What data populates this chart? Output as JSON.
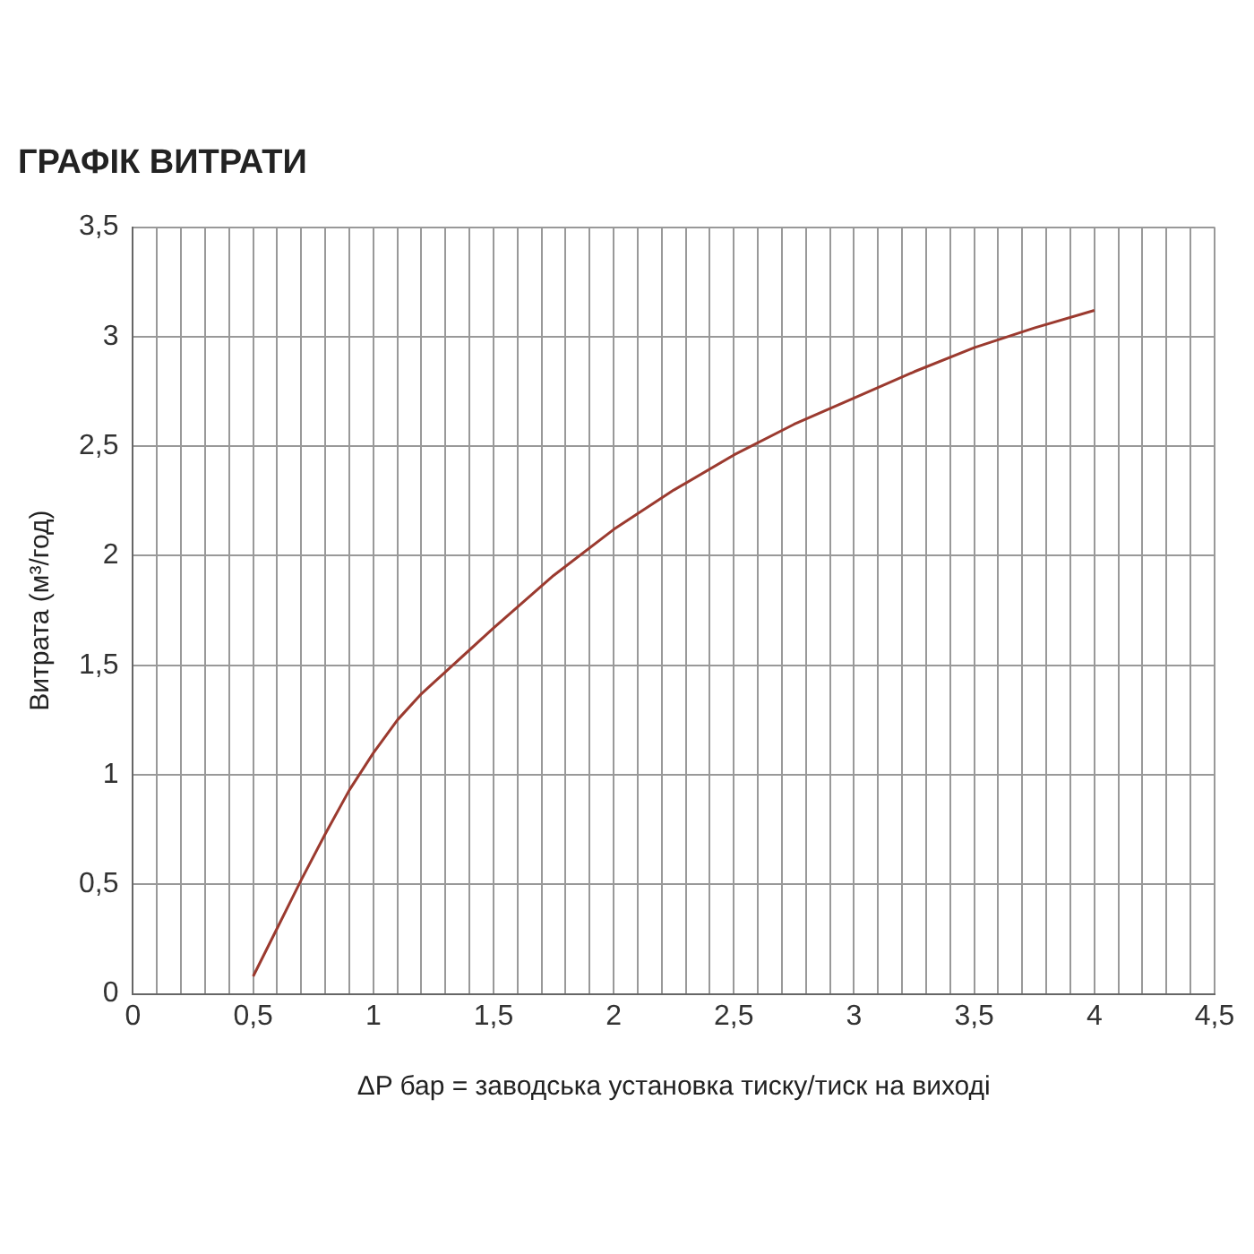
{
  "chart_data": {
    "type": "line",
    "title": "ГРАФІК ВИТРАТИ",
    "xlabel": "ΔP бар = заводська установка тиску/тиск на виході",
    "ylabel": "Витрата (м³/год)",
    "x": [
      0.5,
      0.6,
      0.7,
      0.8,
      0.9,
      1.0,
      1.1,
      1.2,
      1.3,
      1.5,
      1.75,
      2,
      2.25,
      2.5,
      2.75,
      3,
      3.25,
      3.5,
      3.75,
      4
    ],
    "series": [
      {
        "color": "#9b3a2f",
        "values": [
          0.08,
          0.3,
          0.52,
          0.73,
          0.93,
          1.1,
          1.25,
          1.37,
          1.47,
          1.67,
          1.91,
          2.12,
          2.3,
          2.46,
          2.6,
          2.72,
          2.84,
          2.95,
          3.04,
          3.12
        ]
      }
    ],
    "xlim": [
      0,
      4.5
    ],
    "xticks": [
      0,
      {
        "value": 0.1,
        "label": null
      },
      {
        "value": 0.2,
        "label": null
      },
      {
        "value": 0.3,
        "label": null
      },
      {
        "value": 0.4,
        "label": null
      },
      {
        "value": 0.5,
        "label": "0,5"
      },
      {
        "value": 0.6,
        "label": null
      },
      {
        "value": 0.7,
        "label": null
      },
      {
        "value": 0.8,
        "label": null
      },
      {
        "value": 0.9,
        "label": null
      },
      1,
      {
        "value": 1.1,
        "label": null
      },
      {
        "value": 1.2,
        "label": null
      },
      {
        "value": 1.3,
        "label": null
      },
      {
        "value": 1.4,
        "label": null
      },
      {
        "value": 1.5,
        "label": "1,5"
      },
      {
        "value": 1.6,
        "label": null
      },
      {
        "value": 1.7,
        "label": null
      },
      {
        "value": 1.8,
        "label": null
      },
      {
        "value": 1.9,
        "label": null
      },
      2,
      {
        "value": 2.1,
        "label": null
      },
      {
        "value": 2.2,
        "label": null
      },
      {
        "value": 2.3,
        "label": null
      },
      {
        "value": 2.4,
        "label": null
      },
      {
        "value": 2.5,
        "label": "2,5"
      },
      {
        "value": 2.6,
        "label": null
      },
      {
        "value": 2.7,
        "label": null
      },
      {
        "value": 2.8,
        "label": null
      },
      {
        "value": 2.9,
        "label": null
      },
      3,
      {
        "value": 3.1,
        "label": null
      },
      {
        "value": 3.2,
        "label": null
      },
      {
        "value": 3.3,
        "label": null
      },
      {
        "value": 3.4,
        "label": null
      },
      {
        "value": 3.5,
        "label": "3,5"
      },
      {
        "value": 3.6,
        "label": null
      },
      {
        "value": 3.7,
        "label": null
      },
      {
        "value": 3.8,
        "label": null
      },
      {
        "value": 3.9,
        "label": null
      },
      4,
      {
        "value": 4.1,
        "label": null
      },
      {
        "value": 4.2,
        "label": null
      },
      {
        "value": 4.3,
        "label": null
      },
      {
        "value": 4.4,
        "label": null
      },
      {
        "value": 4.5,
        "label": "4,5"
      }
    ],
    "ylim": [
      0,
      3.5
    ],
    "yticks": [
      0,
      {
        "value": 0.5,
        "label": "0,5"
      },
      1,
      {
        "value": 1.5,
        "label": "1,5"
      },
      2,
      {
        "value": 2.5,
        "label": "2,5"
      },
      3,
      {
        "value": 3.5,
        "label": "3,5"
      }
    ],
    "grid": true,
    "legend": false,
    "marker": "none",
    "line_style": "solid"
  }
}
